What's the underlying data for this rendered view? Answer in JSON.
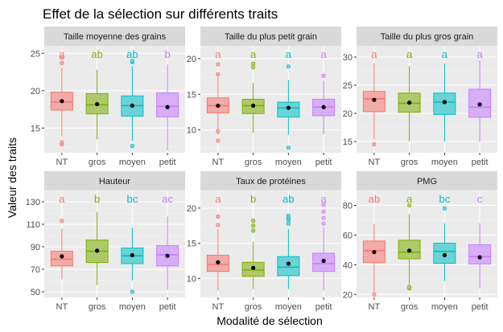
{
  "chart_data": {
    "type": "boxplot",
    "title": "Effet de la sélection sur différents traits",
    "xlabel": "Modalité de sélection",
    "ylabel": "Valeur des traits",
    "categories": [
      "NT",
      "gros",
      "moyen",
      "petit"
    ],
    "colors": {
      "NT": "#F8766D",
      "gros": "#7CAE00",
      "moyen": "#00BFC4",
      "petit": "#C77CFF"
    },
    "facets": [
      {
        "label": "Taille moyenne des grains",
        "ylim": [
          11.7,
          26.0
        ],
        "yticks": [
          15,
          20,
          25
        ],
        "groups": [
          {
            "cat": "NT",
            "letter": "a",
            "q1": 17.4,
            "median": 18.5,
            "q3": 19.8,
            "whisker_low": 13.9,
            "whisker_high": 23.1,
            "mean": 18.6,
            "outliers": [
              12.8,
              13.1,
              23.7,
              24.4
            ]
          },
          {
            "cat": "gros",
            "letter": "ab",
            "q1": 16.9,
            "median": 18.1,
            "q3": 19.6,
            "whisker_low": 13.5,
            "whisker_high": 22.8,
            "mean": 18.2,
            "outliers": []
          },
          {
            "cat": "moyen",
            "letter": "ab",
            "q1": 16.6,
            "median": 18.0,
            "q3": 19.3,
            "whisker_low": 13.3,
            "whisker_high": 23.3,
            "mean": 18.0,
            "outliers": [
              12.6,
              23.8,
              24.0
            ]
          },
          {
            "cat": "petit",
            "letter": "b",
            "q1": 16.5,
            "median": 17.9,
            "q3": 19.7,
            "whisker_low": 12.0,
            "whisker_high": 23.5,
            "mean": 17.8,
            "outliers": []
          }
        ]
      },
      {
        "label": "Taille du plus petit grain",
        "ylim": [
          6.8,
          21.8
        ],
        "yticks": [
          10,
          15,
          20
        ],
        "groups": [
          {
            "cat": "NT",
            "letter": "a",
            "q1": 12.4,
            "median": 13.4,
            "q3": 14.5,
            "whisker_low": 9.3,
            "whisker_high": 17.4,
            "mean": 13.4,
            "outliers": [
              8.5,
              9.8,
              17.8,
              19.2
            ]
          },
          {
            "cat": "gros",
            "letter": "a",
            "q1": 12.3,
            "median": 13.4,
            "q3": 14.3,
            "whisker_low": 9.6,
            "whisker_high": 16.6,
            "mean": 13.4,
            "outliers": [
              18.8,
              19.3
            ]
          },
          {
            "cat": "moyen",
            "letter": "a",
            "q1": 11.8,
            "median": 13.1,
            "q3": 13.9,
            "whisker_low": 9.3,
            "whisker_high": 17.0,
            "mean": 13.1,
            "outliers": [
              7.5,
              18.9
            ]
          },
          {
            "cat": "petit",
            "letter": "a",
            "q1": 12.0,
            "median": 13.2,
            "q3": 14.3,
            "whisker_low": 9.4,
            "whisker_high": 16.9,
            "mean": 13.2,
            "outliers": [
              17.6
            ]
          }
        ]
      },
      {
        "label": "Taille du plus gros grain",
        "ylim": [
          13.0,
          32.0
        ],
        "yticks": [
          15,
          20,
          25,
          30
        ],
        "groups": [
          {
            "cat": "NT",
            "letter": "a",
            "q1": 20.3,
            "median": 22.6,
            "q3": 23.9,
            "whisker_low": 15.4,
            "whisker_high": 28.9,
            "mean": 22.4,
            "outliers": [
              14.5
            ]
          },
          {
            "cat": "gros",
            "letter": "a",
            "q1": 20.2,
            "median": 21.8,
            "q3": 23.6,
            "whisker_low": 15.0,
            "whisker_high": 28.4,
            "mean": 21.9,
            "outliers": []
          },
          {
            "cat": "moyen",
            "letter": "a",
            "q1": 19.8,
            "median": 22.0,
            "q3": 23.6,
            "whisker_low": 15.0,
            "whisker_high": 28.9,
            "mean": 22.0,
            "outliers": []
          },
          {
            "cat": "petit",
            "letter": "a",
            "q1": 19.3,
            "median": 21.1,
            "q3": 24.3,
            "whisker_low": 14.9,
            "whisker_high": 29.4,
            "mean": 21.6,
            "outliers": []
          }
        ]
      },
      {
        "label": "Hauteur",
        "ylim": [
          45,
          140
        ],
        "yticks": [
          50,
          70,
          90,
          110,
          130
        ],
        "groups": [
          {
            "cat": "NT",
            "letter": "a",
            "q1": 73.0,
            "median": 79.0,
            "q3": 86.0,
            "whisker_low": 61.0,
            "whisker_high": 106.0,
            "mean": 81.5,
            "outliers": [
              113.0
            ]
          },
          {
            "cat": "gros",
            "letter": "b",
            "q1": 76.0,
            "median": 86.0,
            "q3": 96.0,
            "whisker_low": 56.0,
            "whisker_high": 121.0,
            "mean": 86.5,
            "outliers": []
          },
          {
            "cat": "moyen",
            "letter": "bc",
            "q1": 75.0,
            "median": 82.0,
            "q3": 89.0,
            "whisker_low": 60.0,
            "whisker_high": 107.0,
            "mean": 82.5,
            "outliers": [
              50.0
            ]
          },
          {
            "cat": "petit",
            "letter": "ac",
            "q1": 73.0,
            "median": 83.0,
            "q3": 91.0,
            "whisker_low": 52.0,
            "whisker_high": 117.0,
            "mean": 82.0,
            "outliers": []
          }
        ]
      },
      {
        "label": "Taux de protéines",
        "ylim": [
          7.3,
          22.5
        ],
        "yticks": [
          10,
          15,
          20
        ],
        "groups": [
          {
            "cat": "NT",
            "letter": "a",
            "q1": 11.0,
            "median": 12.0,
            "q3": 13.3,
            "whisker_low": 8.3,
            "whisker_high": 17.0,
            "mean": 12.3,
            "outliers": [
              17.6,
              18.8
            ]
          },
          {
            "cat": "gros",
            "letter": "b",
            "q1": 10.3,
            "median": 11.2,
            "q3": 12.3,
            "whisker_low": 8.5,
            "whisker_high": 15.2,
            "mean": 11.5,
            "outliers": [
              16.8,
              17.5,
              18.2
            ]
          },
          {
            "cat": "moyen",
            "letter": "ab",
            "q1": 10.4,
            "median": 11.6,
            "q3": 13.1,
            "whisker_low": 8.5,
            "whisker_high": 17.0,
            "mean": 12.1,
            "outliers": [
              17.8,
              18.3,
              18.6,
              18.9
            ]
          },
          {
            "cat": "petit",
            "letter": "a",
            "q1": 11.0,
            "median": 12.1,
            "q3": 13.6,
            "whisker_low": 8.3,
            "whisker_high": 17.3,
            "mean": 12.5,
            "outliers": [
              17.8,
              18.6,
              19.5,
              20.5
            ]
          }
        ]
      },
      {
        "label": "PMG",
        "ylim": [
          18,
          90
        ],
        "yticks": [
          20,
          40,
          60,
          80
        ],
        "groups": [
          {
            "cat": "NT",
            "letter": "ab",
            "q1": 41.5,
            "median": 49.5,
            "q3": 56.0,
            "whisker_low": 20.0,
            "whisker_high": 67.5,
            "mean": 48.5,
            "outliers": [
              20.0
            ]
          },
          {
            "cat": "gros",
            "letter": "a",
            "q1": 44.0,
            "median": 48.5,
            "q3": 56.5,
            "whisker_low": 26.0,
            "whisker_high": 74.0,
            "mean": 49.5,
            "outliers": [
              24.0,
              25.0,
              80.0
            ]
          },
          {
            "cat": "moyen",
            "letter": "bc",
            "q1": 41.0,
            "median": 49.0,
            "q3": 54.5,
            "whisker_low": 29.0,
            "whisker_high": 68.0,
            "mean": 46.5,
            "outliers": [
              78.0
            ]
          },
          {
            "cat": "petit",
            "letter": "c",
            "q1": 40.5,
            "median": 45.5,
            "q3": 53.5,
            "whisker_low": 24.0,
            "whisker_high": 68.0,
            "mean": 45.0,
            "outliers": []
          }
        ]
      }
    ]
  }
}
